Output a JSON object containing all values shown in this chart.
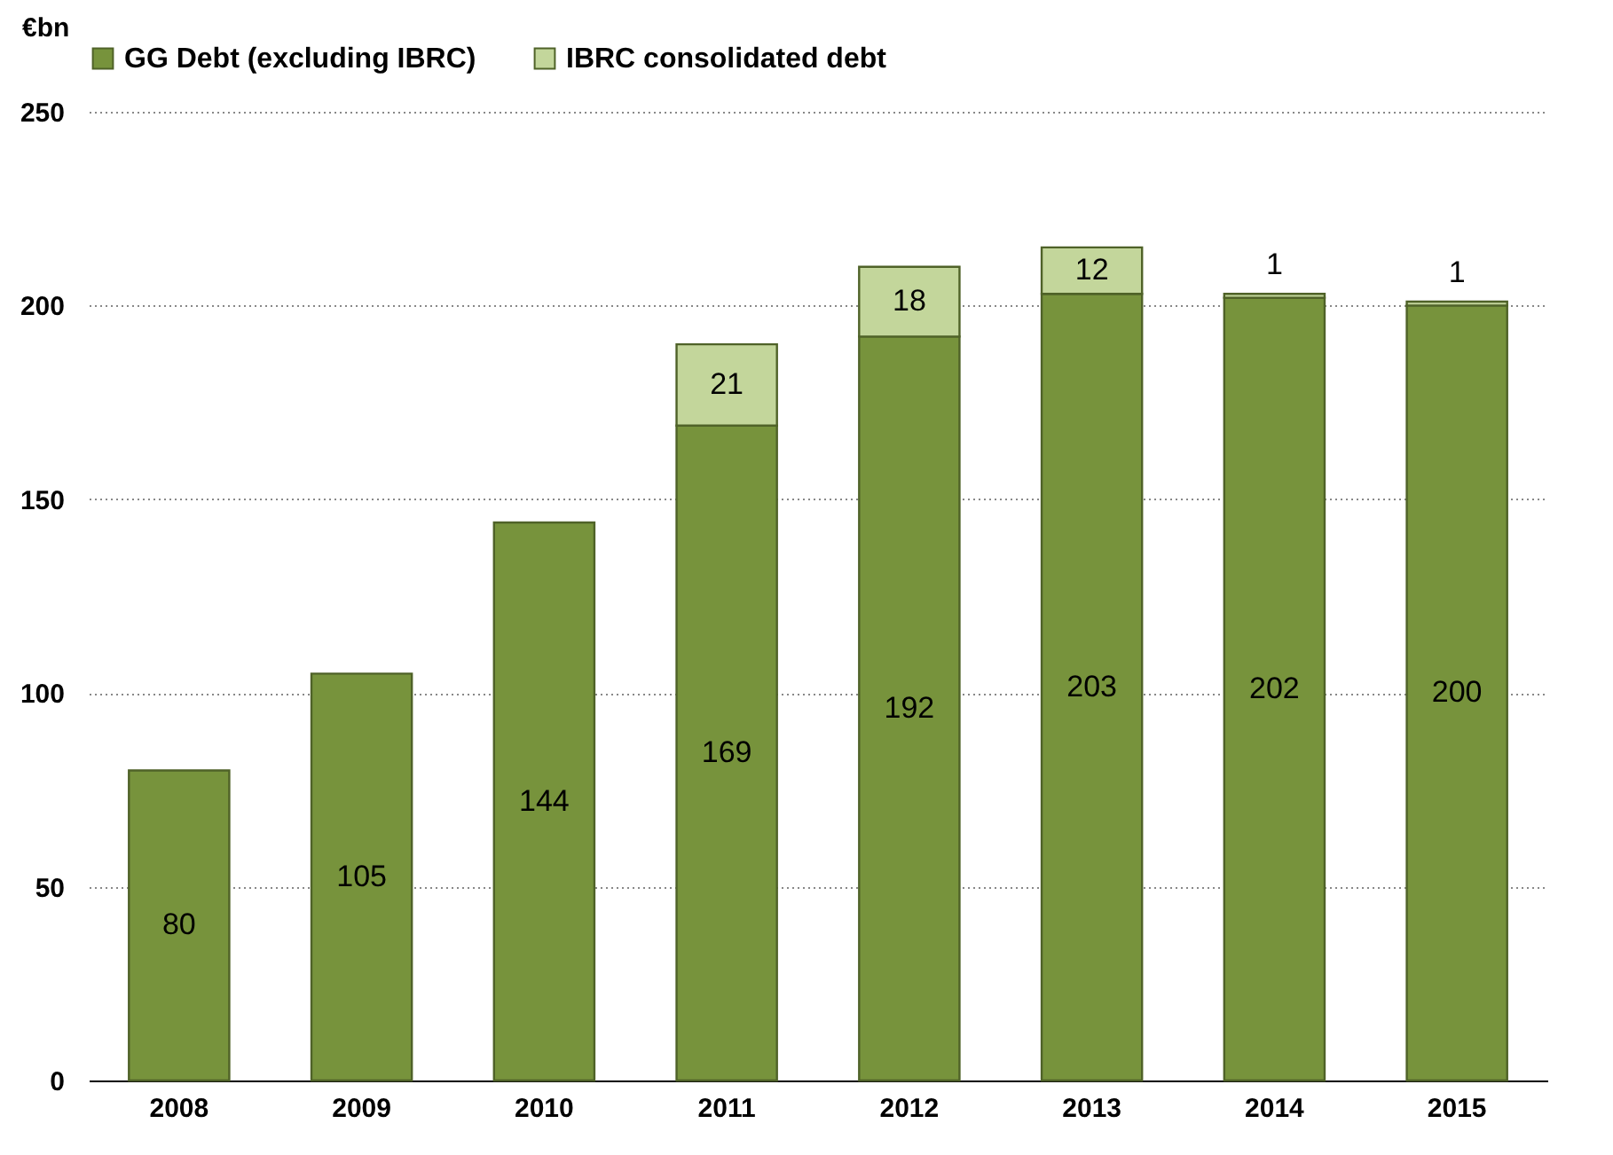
{
  "chart_data": {
    "type": "bar",
    "ylabel": "€bn",
    "stacked": true,
    "categories": [
      "2008",
      "2009",
      "2010",
      "2011",
      "2012",
      "2013",
      "2014",
      "2015"
    ],
    "series": [
      {
        "name": "GG Debt (excluding IBRC)",
        "color": "#77933c",
        "values": [
          80,
          105,
          144,
          169,
          192,
          203,
          202,
          200
        ],
        "value_labels": [
          "80",
          "105",
          "144",
          "169",
          "192",
          "203",
          "202",
          "200"
        ]
      },
      {
        "name": "IBRC consolidated debt",
        "color": "#c3d69b",
        "values": [
          null,
          null,
          null,
          21,
          18,
          12,
          1,
          1
        ],
        "value_labels": [
          null,
          null,
          null,
          "21",
          "18",
          "12",
          "1",
          "1"
        ]
      }
    ],
    "ylim": [
      0,
      250
    ],
    "yticks": [
      0,
      50,
      100,
      150,
      200,
      250
    ],
    "grid": "y",
    "legend": "top"
  }
}
